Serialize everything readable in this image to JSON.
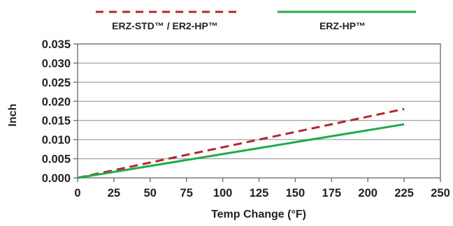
{
  "chart_data": {
    "type": "line",
    "xlabel": "Temp Change (°F)",
    "ylabel": "Inch",
    "xlim": [
      0,
      250
    ],
    "ylim": [
      0,
      0.035
    ],
    "x_ticks": [
      "0",
      "25",
      "50",
      "75",
      "100",
      "125",
      "150",
      "175",
      "200",
      "225",
      "250"
    ],
    "y_ticks": [
      "0.000",
      "0.005",
      "0.010",
      "0.015",
      "0.020",
      "0.025",
      "0.030",
      "0.035"
    ],
    "grid": "horizontal",
    "legend_position": "top",
    "series": [
      {
        "name": "ERZ-STD™ / ER2-HP™",
        "color": "#b5262c",
        "style": "dashed",
        "x": [
          0,
          225
        ],
        "y": [
          0,
          0.018
        ]
      },
      {
        "name": "ERZ-HP™",
        "color": "#1faa4a",
        "style": "solid",
        "x": [
          0,
          225
        ],
        "y": [
          0,
          0.014
        ]
      }
    ]
  }
}
